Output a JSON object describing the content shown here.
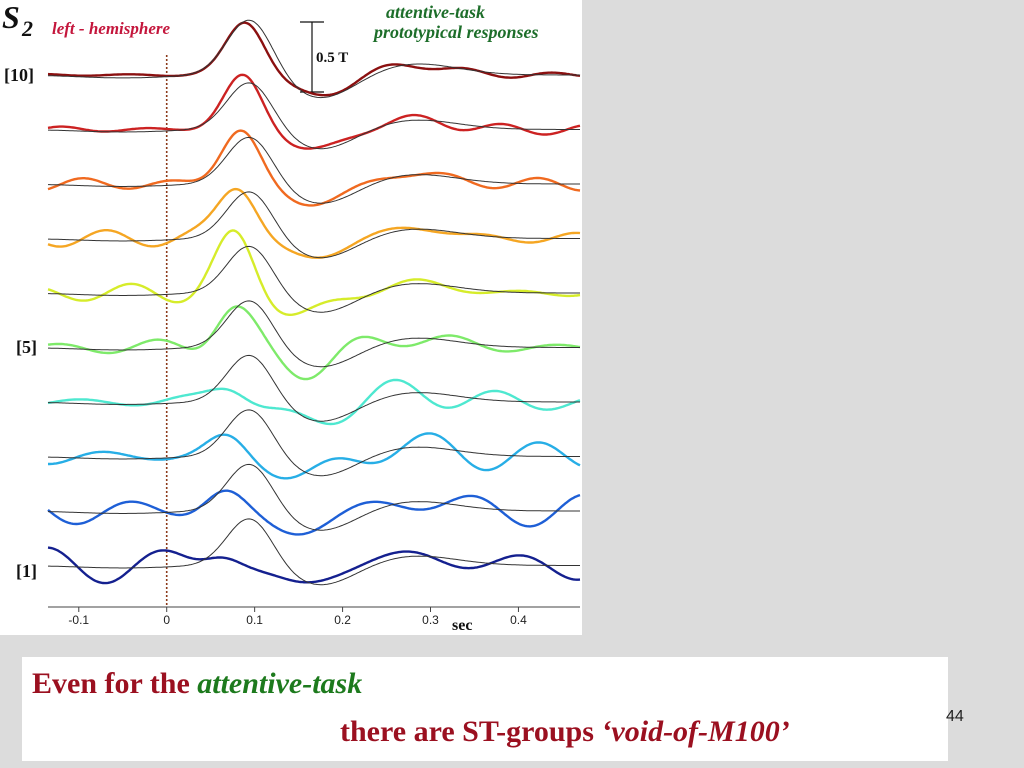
{
  "chart_data": {
    "type": "line",
    "title": "S",
    "title_subscript": "2",
    "subtitle": "left - hemisphere",
    "legend_title_line1": "attentive-task",
    "legend_title_line2": "prototypical responses",
    "scale_bar_label": "0.5 T",
    "xlabel": "sec",
    "xlim": [
      -0.135,
      0.47
    ],
    "x_ticks": [
      -0.1,
      0,
      0.1,
      0.2,
      0.3,
      0.4
    ],
    "x_tick_labels": [
      "-0.1",
      "0",
      "0.1",
      "0.2",
      "0.3",
      "0.4"
    ],
    "stimulus_onset": 0,
    "row_labels": [
      {
        "row": 10,
        "text": "[10]"
      },
      {
        "row": 5,
        "text": "[5]"
      },
      {
        "row": 1,
        "text": "[1]"
      }
    ],
    "series": [
      {
        "row": 10,
        "color": "#8b1010"
      },
      {
        "row": 9,
        "color": "#cc2222"
      },
      {
        "row": 8,
        "color": "#f06a20"
      },
      {
        "row": 7,
        "color": "#f5a623"
      },
      {
        "row": 6,
        "color": "#d6ec2a"
      },
      {
        "row": 5,
        "color": "#7eea6a"
      },
      {
        "row": 4,
        "color": "#4ee8d0"
      },
      {
        "row": 3,
        "color": "#27aee6"
      },
      {
        "row": 2,
        "color": "#1e5fd6"
      },
      {
        "row": 1,
        "color": "#14208f"
      }
    ],
    "prototype_color": "#333333",
    "onset_line_color": "#8b3a1a"
  },
  "caption": {
    "line1_prefix": "Even for the",
    "line1_emph": "attentive-task",
    "line2_prefix": "there are ST-groups",
    "line2_emph": "‘void-of-M100’"
  },
  "slide_number": "44"
}
